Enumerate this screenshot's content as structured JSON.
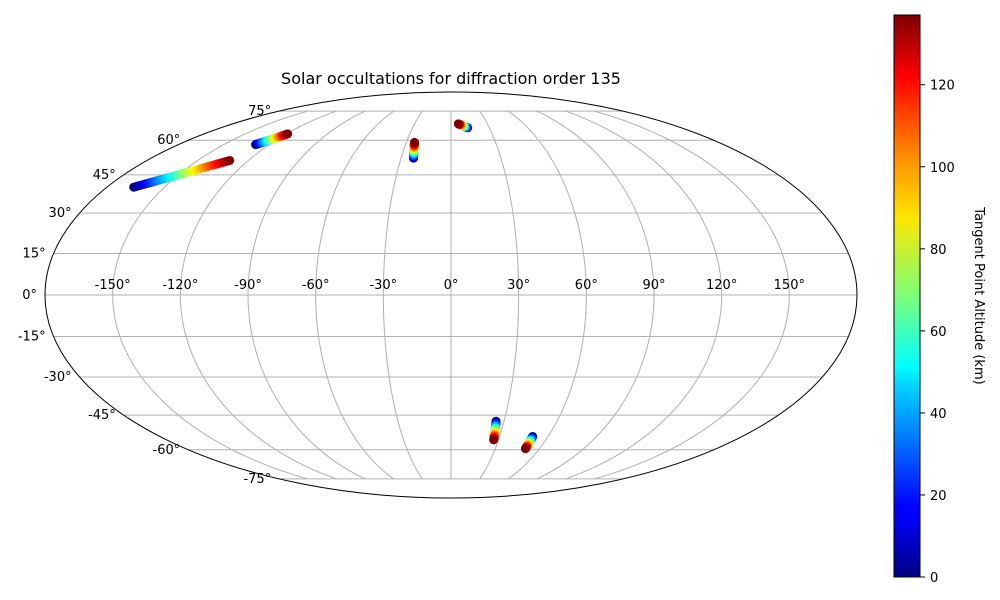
{
  "chart_data": {
    "type": "scatter",
    "projection": "mollweide",
    "title": "Solar occultations for diffraction order 135",
    "grid": true,
    "lon_ticks": [
      -150,
      -120,
      -90,
      -60,
      -30,
      0,
      30,
      60,
      90,
      120,
      150
    ],
    "lon_tick_labels": [
      "-150°",
      "-120°",
      "-90°",
      "-60°",
      "-30°",
      "0°",
      "30°",
      "60°",
      "90°",
      "120°",
      "150°"
    ],
    "lat_ticks": [
      75,
      60,
      45,
      30,
      15,
      0,
      -15,
      -30,
      -45,
      -60,
      -75
    ],
    "lat_tick_labels": [
      "75°",
      "60°",
      "45°",
      "30°",
      "15°",
      "0°",
      "-15°",
      "-30°",
      "-45°",
      "-60°",
      "-75°"
    ],
    "colorbar": {
      "label": "Tangent Point Altitude (km)",
      "colormap": "jet",
      "range": [
        0,
        137
      ],
      "ticks": [
        0,
        20,
        40,
        60,
        80,
        100,
        120
      ],
      "tick_labels": [
        "0",
        "20",
        "40",
        "60",
        "80",
        "100",
        "120"
      ]
    },
    "series": [
      {
        "lon_start": -129,
        "lat_start": 58,
        "lon_end": -119,
        "lat_end": 63,
        "alt_start": 0,
        "alt_end": 137
      },
      {
        "lon_start": -166,
        "lat_start": 40,
        "lon_end": -131,
        "lat_end": 51,
        "alt_start": 0,
        "alt_end": 137
      },
      {
        "lon_start": -22.5,
        "lat_start": 52,
        "lon_end": -24.5,
        "lat_end": 59,
        "alt_start": 0,
        "alt_end": 137
      },
      {
        "lon_start": 13,
        "lat_start": 66,
        "lon_end": 6,
        "lat_end": 68,
        "alt_start": 0,
        "alt_end": 137
      },
      {
        "lon_start": 25.5,
        "lat_start": -47.5,
        "lon_end": 27,
        "lat_end": -55.5,
        "alt_start": 0,
        "alt_end": 137
      },
      {
        "lon_start": 50.5,
        "lat_start": -54,
        "lon_end": 50.5,
        "lat_end": -59.5,
        "alt_start": 0,
        "alt_end": 137
      }
    ]
  }
}
